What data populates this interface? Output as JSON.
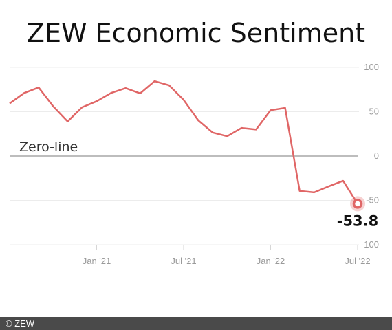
{
  "title": "ZEW Economic Sentiment",
  "footer": "© ZEW",
  "chart_data": {
    "type": "line",
    "title": "ZEW Economic Sentiment",
    "xlabel": "",
    "ylabel": "",
    "ylim": [
      -100,
      100
    ],
    "yticks": [
      100,
      50,
      0,
      -50,
      -100
    ],
    "xticks": [
      {
        "x": "2021-01",
        "label": "Jan '21"
      },
      {
        "x": "2021-07",
        "label": "Jul '21"
      },
      {
        "x": "2022-01",
        "label": "Jan '22"
      },
      {
        "x": "2022-07",
        "label": "Jul '22"
      }
    ],
    "annotation": "Zero-line",
    "last_value_label": "-53.8",
    "line_color": "#e06666",
    "grid": true,
    "series": [
      {
        "x": [
          "2020-07",
          "2020-08",
          "2020-09",
          "2020-10",
          "2020-11",
          "2020-12",
          "2021-01",
          "2021-02",
          "2021-03",
          "2021-04",
          "2021-05",
          "2021-06",
          "2021-07",
          "2021-08",
          "2021-09",
          "2021-10",
          "2021-11",
          "2021-12",
          "2022-01",
          "2022-02",
          "2022-03",
          "2022-04",
          "2022-05",
          "2022-06",
          "2022-07"
        ],
        "values": [
          59.3,
          71.1,
          77.4,
          56.1,
          39.0,
          55.0,
          61.8,
          71.2,
          76.6,
          70.7,
          84.4,
          79.8,
          63.3,
          40.4,
          26.5,
          22.3,
          31.7,
          29.9,
          51.7,
          54.3,
          -39.3,
          -41.0,
          -34.3,
          -28.0,
          -53.8
        ]
      }
    ]
  }
}
